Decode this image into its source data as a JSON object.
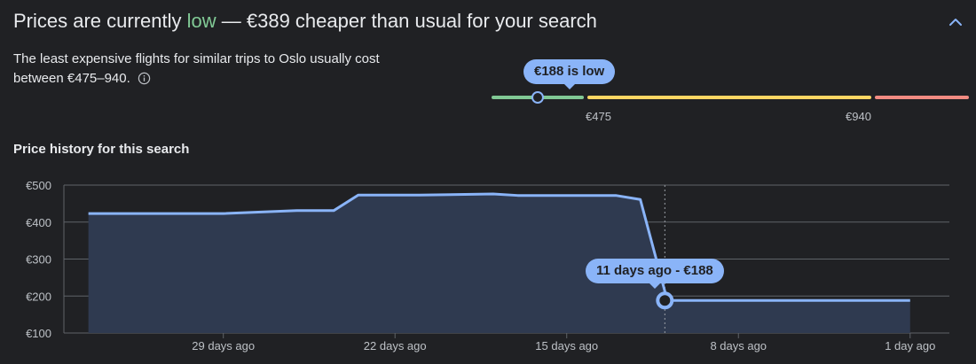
{
  "header": {
    "title_prefix": "Prices are currently ",
    "title_status": "low",
    "title_suffix": " — €389 cheaper than usual for your search",
    "status_color": "#81c995"
  },
  "description": {
    "text": "The least expensive flights for similar trips to Oslo usually cost between €475–940."
  },
  "price_range": {
    "marker_label": "€188 is low",
    "low_threshold": "€475",
    "high_threshold": "€940",
    "colors": {
      "low": "#81c995",
      "typical": "#fdd663",
      "high": "#f28b82"
    }
  },
  "history": {
    "title": "Price history for this search",
    "tooltip": "11 days ago - €188"
  },
  "icons": {
    "collapse": "chevron-up-icon",
    "info": "info-icon"
  },
  "chart_data": {
    "type": "area",
    "xlabel": "",
    "ylabel": "",
    "ylim": [
      100,
      500
    ],
    "x": [
      -34.5,
      -32,
      -29,
      -26,
      -24.5,
      -23.5,
      -22.5,
      -21,
      -18,
      -17,
      -16,
      -13,
      -12,
      -10.9,
      -1
    ],
    "series": [
      {
        "values": [
          423,
          423,
          423,
          431,
          431,
          473,
          473,
          473,
          476,
          472,
          472,
          472,
          461,
          188,
          188
        ]
      }
    ],
    "x_ticks": [
      {
        "value": -29,
        "label": "29 days ago"
      },
      {
        "value": -22,
        "label": "22 days ago"
      },
      {
        "value": -15,
        "label": "15 days ago"
      },
      {
        "value": -8,
        "label": "8 days ago"
      },
      {
        "value": -1,
        "label": "1 day ago"
      }
    ],
    "y_ticks": [
      {
        "value": 500,
        "label": "€500"
      },
      {
        "value": 400,
        "label": "€400"
      },
      {
        "value": 300,
        "label": "€300"
      },
      {
        "value": 200,
        "label": "€200"
      },
      {
        "value": 100,
        "label": "€100"
      }
    ],
    "highlight": {
      "x": -11,
      "y": 188
    },
    "grid": true,
    "line_color": "#8ab4f8"
  }
}
